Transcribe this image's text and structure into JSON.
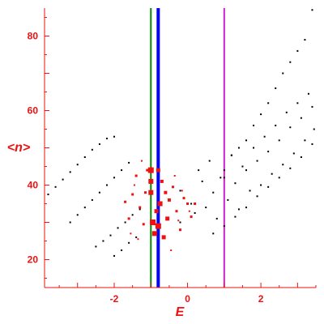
{
  "chart_data": {
    "type": "scatter",
    "xlabel": "E",
    "ylabel": "<n>",
    "xlim": [
      -3.9,
      3.5
    ],
    "ylim": [
      12.5,
      87.5
    ],
    "xticks": [
      -2,
      0,
      2
    ],
    "yticks": [
      20,
      40,
      60,
      80
    ],
    "grid": false,
    "colors": {
      "axis": "#ee1111",
      "points_black": "#000000",
      "points_red": "#ee1111",
      "line_green": "#008800",
      "line_blue": "#0000ff",
      "line_magenta": "#cc22cc"
    },
    "vertical_lines": [
      {
        "x": -1.0,
        "color": "#008800",
        "weight": "thin"
      },
      {
        "x": -0.8,
        "color": "#0000ff",
        "weight": "thick"
      },
      {
        "x": 1.0,
        "color": "#cc22cc",
        "weight": "thin"
      }
    ],
    "black_series": [
      {
        "x": [
          -3.8,
          -3.6,
          -3.4,
          -3.2,
          -3.0,
          -2.8,
          -2.6,
          -2.4,
          -2.2,
          -2.0
        ],
        "y": [
          37.5,
          39.5,
          41.5,
          43.5,
          45.5,
          47.5,
          49.5,
          51.0,
          52.5,
          53.0
        ]
      },
      {
        "x": [
          -3.2,
          -3.0,
          -2.8,
          -2.6,
          -2.4,
          -2.2,
          -2.0,
          -1.8,
          -1.6
        ],
        "y": [
          30.0,
          32.0,
          34.0,
          36.0,
          38.0,
          40.0,
          42.0,
          44.0,
          46.0
        ]
      },
      {
        "x": [
          -2.5,
          -2.3,
          -2.1,
          -1.9,
          -1.7,
          -1.5,
          -1.3
        ],
        "y": [
          23.5,
          25.0,
          26.5,
          28.5,
          30.0,
          32.0,
          33.5
        ]
      },
      {
        "x": [
          -2.0,
          -1.8,
          -1.6,
          -1.4
        ],
        "y": [
          21.0,
          22.5,
          24.5,
          26.0
        ]
      },
      {
        "x": [
          1.0,
          1.2,
          1.4,
          1.6,
          1.8,
          2.0,
          2.2,
          2.4,
          2.6,
          2.8,
          3.0,
          3.2,
          3.4
        ],
        "y": [
          44.0,
          48.0,
          50.0,
          52.0,
          56.0,
          59.0,
          62.0,
          66.0,
          70.0,
          73.0,
          76.0,
          79.0,
          87.0
        ]
      },
      {
        "x": [
          -0.5,
          -0.2,
          0.1,
          0.4,
          0.7,
          1.0,
          1.3,
          1.6,
          1.9,
          2.2,
          2.5,
          2.8,
          3.1,
          3.4
        ],
        "y": [
          36.0,
          38.5,
          35.0,
          41.0,
          38.0,
          42.0,
          40.5,
          44.0,
          46.5,
          49.0,
          52.0,
          55.5,
          58.0,
          61.0
        ]
      },
      {
        "x": [
          -0.2,
          0.2,
          0.5,
          0.8,
          1.1,
          1.4,
          1.7,
          2.0,
          2.3,
          2.6,
          2.9,
          3.2,
          3.45
        ],
        "y": [
          30.0,
          32.5,
          34.0,
          31.0,
          36.0,
          33.5,
          38.5,
          40.0,
          43.0,
          45.5,
          48.5,
          52.0,
          55.0
        ]
      },
      {
        "x": [
          0.3,
          0.6,
          0.9,
          1.2,
          1.5,
          1.8,
          2.1,
          2.4,
          2.7,
          3.0,
          3.3
        ],
        "y": [
          44.0,
          46.5,
          42.0,
          48.0,
          45.0,
          50.0,
          53.0,
          56.0,
          59.5,
          62.0,
          64.5
        ]
      },
      {
        "x": [
          0.7,
          1.0,
          1.3,
          1.6,
          1.9,
          2.2,
          2.5,
          2.8,
          3.1,
          3.4
        ],
        "y": [
          27.0,
          29.0,
          31.5,
          34.0,
          37.0,
          39.5,
          42.0,
          44.5,
          47.5,
          51.0
        ]
      }
    ],
    "red_series": [
      {
        "x": [
          -1.0,
          -1.0,
          -1.0,
          -0.95,
          -0.9,
          -0.85,
          -0.8,
          -0.8,
          -0.75,
          -0.7,
          -0.65,
          -0.6,
          -0.55,
          -0.5
        ],
        "y": [
          44.0,
          41.0,
          38.0,
          30.0,
          27.0,
          33.0,
          44.0,
          29.0,
          35.0,
          41.0,
          26.0,
          38.0,
          31.0,
          36.0
        ],
        "size": [
          7,
          6,
          6,
          7,
          6,
          5,
          5,
          7,
          6,
          4,
          5,
          4,
          5,
          4
        ]
      },
      {
        "x": [
          -1.7,
          -1.6,
          -1.5,
          -1.4,
          -1.3,
          -1.2,
          -1.15,
          -1.1,
          -0.4,
          -0.3,
          -0.2,
          -0.1,
          0.0,
          0.1,
          0.2
        ],
        "y": [
          35.5,
          31.0,
          37.5,
          42.5,
          34.0,
          29.5,
          38.0,
          44.0,
          39.5,
          33.0,
          28.0,
          36.5,
          35.0,
          31.5,
          35.0
        ],
        "size": [
          3,
          3,
          3,
          3,
          3,
          3,
          3,
          3,
          3,
          3,
          3,
          3,
          3,
          3,
          3
        ]
      },
      {
        "x": [
          -1.55,
          -1.45,
          -1.35,
          -1.25,
          -0.45,
          -0.35,
          -0.25,
          -0.15,
          0.05
        ],
        "y": [
          27.0,
          40.0,
          25.5,
          46.5,
          22.5,
          42.5,
          30.5,
          38.5,
          33.0
        ],
        "size": [
          2,
          2,
          2,
          2,
          2,
          2,
          2,
          2,
          2
        ]
      }
    ]
  }
}
